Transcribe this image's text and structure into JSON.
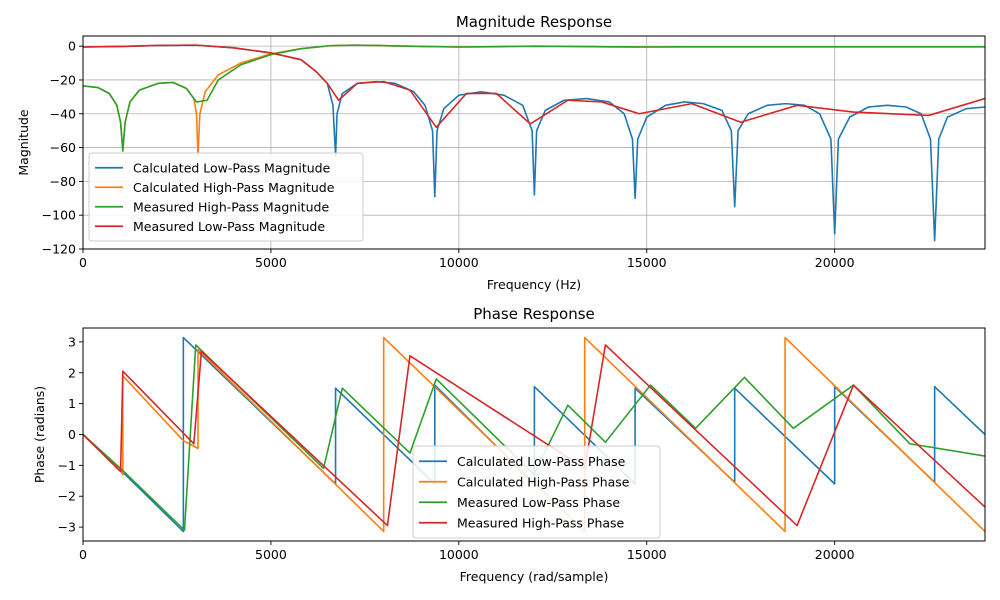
{
  "chart_data": [
    {
      "type": "line",
      "title": "Magnitude Response",
      "xlabel": "Frequency (Hz)",
      "ylabel": "Magnitude",
      "xlim": [
        0,
        24000
      ],
      "ylim": [
        -120,
        6
      ],
      "xticks": [
        0,
        5000,
        10000,
        15000,
        20000
      ],
      "yticks": [
        0,
        -20,
        -40,
        -60,
        -80,
        -100,
        -120
      ],
      "grid": true,
      "legend_position": "lower-left",
      "series": [
        {
          "name": "Calculated Low-Pass Magnitude",
          "color": "#1f77b4",
          "points": [
            [
              0,
              -0.5
            ],
            [
              1000,
              -0.2
            ],
            [
              2000,
              0.4
            ],
            [
              3000,
              0.6
            ],
            [
              4000,
              -1
            ],
            [
              5000,
              -4
            ],
            [
              5800,
              -8
            ],
            [
              6200,
              -15
            ],
            [
              6500,
              -22
            ],
            [
              6650,
              -35
            ],
            [
              6720,
              -65
            ],
            [
              6760,
              -40
            ],
            [
              6900,
              -28
            ],
            [
              7300,
              -22
            ],
            [
              7800,
              -21
            ],
            [
              8300,
              -22
            ],
            [
              8800,
              -27
            ],
            [
              9100,
              -35
            ],
            [
              9300,
              -50
            ],
            [
              9360,
              -89
            ],
            [
              9420,
              -50
            ],
            [
              9600,
              -37
            ],
            [
              10000,
              -29
            ],
            [
              10600,
              -27
            ],
            [
              11200,
              -29
            ],
            [
              11700,
              -35
            ],
            [
              11950,
              -50
            ],
            [
              12010,
              -88
            ],
            [
              12070,
              -50
            ],
            [
              12300,
              -38
            ],
            [
              12800,
              -32
            ],
            [
              13400,
              -31
            ],
            [
              14000,
              -33
            ],
            [
              14400,
              -40
            ],
            [
              14620,
              -55
            ],
            [
              14690,
              -90
            ],
            [
              14760,
              -55
            ],
            [
              15000,
              -42
            ],
            [
              15500,
              -35
            ],
            [
              16000,
              -33
            ],
            [
              16500,
              -34
            ],
            [
              17000,
              -38
            ],
            [
              17250,
              -50
            ],
            [
              17340,
              -95
            ],
            [
              17430,
              -50
            ],
            [
              17700,
              -40
            ],
            [
              18200,
              -35
            ],
            [
              18700,
              -34
            ],
            [
              19200,
              -35
            ],
            [
              19600,
              -40
            ],
            [
              19900,
              -55
            ],
            [
              20000,
              -111
            ],
            [
              20100,
              -55
            ],
            [
              20400,
              -42
            ],
            [
              20900,
              -36
            ],
            [
              21400,
              -35
            ],
            [
              21900,
              -36
            ],
            [
              22300,
              -40
            ],
            [
              22550,
              -55
            ],
            [
              22660,
              -115
            ],
            [
              22770,
              -55
            ],
            [
              23000,
              -42
            ],
            [
              23500,
              -37
            ],
            [
              24000,
              -36
            ]
          ]
        },
        {
          "name": "Calculated High-Pass Magnitude",
          "color": "#ff7f0e",
          "points": [
            [
              0,
              -23.5
            ],
            [
              400,
              -24.5
            ],
            [
              700,
              -28
            ],
            [
              900,
              -35
            ],
            [
              1000,
              -45
            ],
            [
              1060,
              -62
            ],
            [
              1120,
              -45
            ],
            [
              1250,
              -33
            ],
            [
              1500,
              -26
            ],
            [
              2000,
              -22
            ],
            [
              2400,
              -21.5
            ],
            [
              2750,
              -25
            ],
            [
              2950,
              -31
            ],
            [
              3020,
              -40
            ],
            [
              3060,
              -65
            ],
            [
              3110,
              -40
            ],
            [
              3250,
              -27
            ],
            [
              3600,
              -17
            ],
            [
              4200,
              -10
            ],
            [
              5000,
              -4.5
            ],
            [
              5800,
              -1.5
            ],
            [
              6600,
              0.3
            ],
            [
              7200,
              0.6
            ],
            [
              8000,
              0.3
            ],
            [
              9000,
              -0.2
            ],
            [
              10000,
              -0.5
            ],
            [
              11000,
              -0.3
            ],
            [
              12000,
              0
            ],
            [
              13000,
              -0.2
            ],
            [
              14000,
              -0.4
            ],
            [
              15000,
              -0.5
            ],
            [
              16000,
              -0.4
            ],
            [
              18000,
              -0.4
            ],
            [
              20000,
              -0.4
            ],
            [
              22000,
              -0.4
            ],
            [
              24000,
              -0.4
            ]
          ]
        },
        {
          "name": "Measured High-Pass Magnitude",
          "color": "#2ca02c",
          "points": [
            [
              0,
              -23.5
            ],
            [
              400,
              -24.5
            ],
            [
              700,
              -28
            ],
            [
              900,
              -35
            ],
            [
              1000,
              -45
            ],
            [
              1060,
              -62
            ],
            [
              1120,
              -45
            ],
            [
              1250,
              -33
            ],
            [
              1500,
              -26
            ],
            [
              2000,
              -22
            ],
            [
              2400,
              -21.5
            ],
            [
              2750,
              -25
            ],
            [
              2950,
              -31
            ],
            [
              3020,
              -33
            ],
            [
              3300,
              -32
            ],
            [
              3600,
              -20
            ],
            [
              4200,
              -11
            ],
            [
              5000,
              -5
            ],
            [
              5800,
              -1.5
            ],
            [
              6600,
              0.3
            ],
            [
              7200,
              0.6
            ],
            [
              8000,
              0.3
            ],
            [
              9000,
              -0.2
            ],
            [
              10000,
              -0.5
            ],
            [
              11000,
              -0.3
            ],
            [
              12000,
              0
            ],
            [
              13000,
              -0.2
            ],
            [
              14000,
              -0.4
            ],
            [
              15000,
              -0.5
            ],
            [
              16000,
              -0.4
            ],
            [
              18000,
              -0.4
            ],
            [
              20000,
              -0.4
            ],
            [
              22000,
              -0.4
            ],
            [
              24000,
              -0.4
            ]
          ]
        },
        {
          "name": "Measured Low-Pass Magnitude",
          "color": "#d62728",
          "points": [
            [
              0,
              -0.5
            ],
            [
              1000,
              -0.2
            ],
            [
              2000,
              0.4
            ],
            [
              3000,
              0.6
            ],
            [
              4000,
              -1
            ],
            [
              5000,
              -4
            ],
            [
              5800,
              -8
            ],
            [
              6200,
              -15
            ],
            [
              6500,
              -22
            ],
            [
              6800,
              -32
            ],
            [
              7300,
              -22
            ],
            [
              8000,
              -21
            ],
            [
              8700,
              -26
            ],
            [
              9400,
              -48
            ],
            [
              10200,
              -28
            ],
            [
              11000,
              -28
            ],
            [
              11900,
              -46
            ],
            [
              12900,
              -32
            ],
            [
              13800,
              -33
            ],
            [
              14800,
              -40
            ],
            [
              16200,
              -34
            ],
            [
              17500,
              -45
            ],
            [
              19000,
              -35
            ],
            [
              20500,
              -39
            ],
            [
              22500,
              -41
            ],
            [
              24000,
              -31
            ]
          ]
        }
      ]
    },
    {
      "type": "line",
      "title": "Phase Response",
      "xlabel": "Frequency (rad/sample)",
      "ylabel": "Phase (radians)",
      "xlim": [
        0,
        24000
      ],
      "ylim": [
        -3.45,
        3.45
      ],
      "xticks": [
        0,
        5000,
        10000,
        15000,
        20000
      ],
      "yticks": [
        3,
        2,
        1,
        0,
        -1,
        -2,
        -3
      ],
      "grid": false,
      "legend_position": "lower-center",
      "series": [
        {
          "name": "Calculated Low-Pass Phase",
          "color": "#1f77b4",
          "points": [
            [
              0,
              0
            ],
            [
              1000,
              -1.15
            ],
            [
              2670,
              -3.14
            ],
            [
              2670,
              3.14
            ],
            [
              6720,
              -1.6
            ],
            [
              6720,
              1.5
            ],
            [
              9360,
              -1.6
            ],
            [
              9360,
              1.6
            ],
            [
              12010,
              -1.6
            ],
            [
              12010,
              1.55
            ],
            [
              14690,
              -1.6
            ],
            [
              14690,
              1.5
            ],
            [
              17340,
              -1.55
            ],
            [
              17340,
              1.5
            ],
            [
              20000,
              -1.6
            ],
            [
              20000,
              1.55
            ],
            [
              22660,
              -1.55
            ],
            [
              22660,
              1.55
            ],
            [
              24000,
              0
            ]
          ]
        },
        {
          "name": "Calculated High-Pass Phase",
          "color": "#ff7f0e",
          "points": [
            [
              0,
              0
            ],
            [
              1000,
              -1.15
            ],
            [
              1060,
              -1.3
            ],
            [
              1060,
              1.9
            ],
            [
              2670,
              -0.2
            ],
            [
              3060,
              -0.45
            ],
            [
              3060,
              2.75
            ],
            [
              8000,
              -3.14
            ],
            [
              8000,
              3.14
            ],
            [
              13350,
              -3.14
            ],
            [
              13350,
              3.14
            ],
            [
              18680,
              -3.14
            ],
            [
              18680,
              3.14
            ],
            [
              24000,
              -3.14
            ]
          ]
        },
        {
          "name": "Measured Low-Pass Phase",
          "color": "#2ca02c",
          "points": [
            [
              0,
              0
            ],
            [
              1000,
              -1.1
            ],
            [
              2700,
              -3.1
            ],
            [
              3000,
              2.9
            ],
            [
              6400,
              -1.1
            ],
            [
              6900,
              1.5
            ],
            [
              8700,
              -0.6
            ],
            [
              9400,
              1.8
            ],
            [
              12000,
              -1.3
            ],
            [
              12900,
              0.95
            ],
            [
              13900,
              -0.25
            ],
            [
              15100,
              1.6
            ],
            [
              16300,
              0.2
            ],
            [
              17600,
              1.85
            ],
            [
              18900,
              0.2
            ],
            [
              20500,
              1.6
            ],
            [
              22000,
              -0.3
            ],
            [
              24000,
              -0.7
            ]
          ]
        },
        {
          "name": "Measured High-Pass Phase",
          "color": "#d62728",
          "points": [
            [
              0,
              0
            ],
            [
              1000,
              -1.2
            ],
            [
              1060,
              2.05
            ],
            [
              2950,
              -0.3
            ],
            [
              3150,
              2.7
            ],
            [
              8100,
              -2.95
            ],
            [
              8700,
              2.55
            ],
            [
              13350,
              -1.1
            ],
            [
              13900,
              2.9
            ],
            [
              19000,
              -2.95
            ],
            [
              20500,
              1.6
            ],
            [
              24000,
              -2.35
            ]
          ]
        }
      ]
    }
  ]
}
